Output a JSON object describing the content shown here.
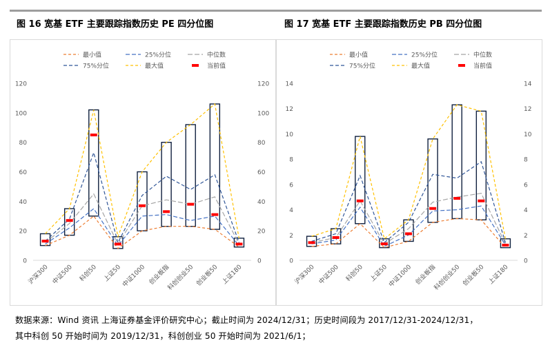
{
  "footnote": {
    "line1": "数据来源：Wind 资讯  上海证券基金评价研究中心；截止时间为 2024/12/31；历史时间段为 2017/12/31-2024/12/31，",
    "line2": "其中科创 50 开始时间为 2019/12/31，科创创业 50 开始时间为 2021/6/1；"
  },
  "colors": {
    "min": "#ed7d31",
    "p25": "#4472c4",
    "median": "#a5a5a5",
    "p75": "#2f5597",
    "max": "#ffc000",
    "current": "#ff0000",
    "box": "#0f1f3d",
    "axis": "#d9d9d9",
    "tick": "#595959"
  },
  "chart_data": [
    {
      "type": "box",
      "title": "图 16  宽基 ETF 主要跟踪指数历史 PE 四分位图",
      "categories": [
        "沪深300",
        "中证500",
        "科创50",
        "上证50",
        "中证1000",
        "创业板指",
        "科创创业50",
        "创业板50",
        "上证180"
      ],
      "ylim": [
        0,
        120
      ],
      "yticks": [
        0,
        20,
        40,
        60,
        80,
        100,
        120
      ],
      "legend": [
        "最小值",
        "25%分位",
        "中位数",
        "75%分位",
        "最大值",
        "当前值"
      ],
      "series": [
        {
          "name": "最小值",
          "key": "min",
          "values": [
            10,
            17,
            30,
            8,
            20,
            23,
            23,
            21,
            9
          ]
        },
        {
          "name": "25%分位",
          "key": "p25",
          "values": [
            11,
            22,
            35,
            10,
            30,
            31,
            27,
            30,
            10
          ]
        },
        {
          "name": "中位数",
          "key": "median",
          "values": [
            12,
            25,
            45,
            11,
            37,
            41,
            38,
            43,
            11
          ]
        },
        {
          "name": "75%分位",
          "key": "p75",
          "values": [
            13,
            28,
            73,
            12,
            44,
            57,
            48,
            58,
            12
          ]
        },
        {
          "name": "最大值",
          "key": "max",
          "values": [
            18,
            35,
            102,
            16,
            60,
            80,
            92,
            106,
            15
          ]
        },
        {
          "name": "当前值",
          "key": "current",
          "values": [
            13,
            27,
            85,
            11,
            37,
            33,
            38,
            31,
            11
          ]
        }
      ]
    },
    {
      "type": "box",
      "title": "图 17  宽基 ETF 主要跟踪指数历史 PB 四分位图",
      "categories": [
        "沪深300",
        "中证500",
        "科创50",
        "上证50",
        "中证1000",
        "创业板指",
        "科创创业50",
        "创业板50",
        "上证180"
      ],
      "ylim": [
        0,
        14
      ],
      "yticks": [
        0,
        2,
        4,
        6,
        8,
        10,
        12,
        14
      ],
      "legend": [
        "最小值",
        "25%分位",
        "中位数",
        "75%分位",
        "最大值",
        "当前值"
      ],
      "series": [
        {
          "name": "最小值",
          "key": "min",
          "values": [
            1.1,
            1.3,
            2.9,
            1.0,
            1.5,
            3.0,
            3.3,
            3.2,
            1.0
          ]
        },
        {
          "name": "25%分位",
          "key": "p25",
          "values": [
            1.3,
            1.6,
            4.2,
            1.1,
            2.0,
            3.9,
            4.0,
            4.3,
            1.2
          ]
        },
        {
          "name": "中位数",
          "key": "median",
          "values": [
            1.4,
            1.8,
            4.7,
            1.3,
            2.5,
            4.6,
            5.0,
            5.3,
            1.3
          ]
        },
        {
          "name": "75%分位",
          "key": "p75",
          "values": [
            1.5,
            2.1,
            6.7,
            1.4,
            3.0,
            6.8,
            6.5,
            7.8,
            1.4
          ]
        },
        {
          "name": "最大值",
          "key": "max",
          "values": [
            1.9,
            2.5,
            9.8,
            1.7,
            3.2,
            9.6,
            12.3,
            11.8,
            1.7
          ]
        },
        {
          "name": "当前值",
          "key": "current",
          "values": [
            1.4,
            1.8,
            4.7,
            1.3,
            2.1,
            4.1,
            4.9,
            4.7,
            1.2
          ]
        }
      ]
    }
  ]
}
